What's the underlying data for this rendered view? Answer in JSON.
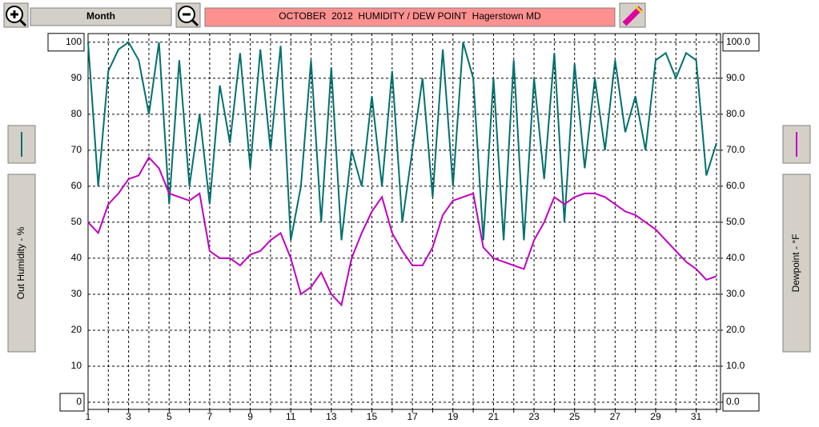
{
  "toolbar": {
    "period": "Month"
  },
  "chart_data": {
    "type": "line",
    "title": "OCTOBER  2012  HUMIDITY / DEW POINT  Hagerstown MD",
    "y_label": "Out Humidity - %",
    "y2_label": "Dewpoint - °F",
    "x": [
      1,
      1.5,
      2,
      2.5,
      3,
      3.5,
      4,
      4.5,
      5,
      5.5,
      6,
      6.5,
      7,
      7.5,
      8,
      8.5,
      9,
      9.5,
      10,
      10.5,
      11,
      11.5,
      12,
      12.5,
      13,
      13.5,
      14,
      14.5,
      15,
      15.5,
      16,
      16.5,
      17,
      17.5,
      18,
      18.5,
      19,
      19.5,
      20,
      20.5,
      21,
      21.5,
      22,
      22.5,
      23,
      23.5,
      24,
      24.5,
      25,
      25.5,
      26,
      26.5,
      27,
      27.5,
      28,
      28.5,
      29,
      29.5,
      30,
      30.5,
      31,
      31.5,
      32
    ],
    "series": [
      {
        "name": "Out Humidity",
        "color": "#007070",
        "values": [
          100,
          60,
          92,
          98,
          100,
          95,
          80,
          100,
          55,
          95,
          60,
          80,
          55,
          88,
          72,
          97,
          65,
          98,
          70,
          99,
          45,
          60,
          95,
          50,
          93,
          45,
          70,
          60,
          85,
          60,
          92,
          50,
          70,
          90,
          57,
          98,
          60,
          100,
          90,
          45,
          90,
          45,
          95,
          45,
          90,
          62,
          97,
          50,
          94,
          65,
          90,
          70,
          95,
          75,
          85,
          70,
          95,
          97,
          90,
          97,
          95,
          63,
          72
        ]
      },
      {
        "name": "Dewpoint",
        "color": "#c000c0",
        "axis": "y2",
        "values": [
          50,
          47,
          55,
          58,
          62,
          63,
          68,
          65,
          58,
          57,
          56,
          58,
          42,
          40,
          40,
          38,
          41,
          42,
          45,
          47,
          40,
          30,
          32,
          36,
          30,
          27,
          40,
          47,
          53,
          57,
          47,
          42,
          38,
          38,
          43,
          52,
          56,
          57,
          58,
          43,
          40,
          39,
          38,
          37,
          45,
          50,
          57,
          55,
          57,
          58,
          58,
          57,
          55,
          53,
          52,
          50,
          48,
          45,
          42,
          39,
          37,
          34,
          35
        ]
      }
    ],
    "xlim": [
      1,
      32.2
    ],
    "xticks": [
      1,
      3,
      5,
      7,
      9,
      11,
      13,
      15,
      17,
      19,
      21,
      23,
      25,
      27,
      29,
      31
    ],
    "xminorticks": [
      2,
      4,
      6,
      8,
      10,
      12,
      14,
      16,
      18,
      20,
      22,
      24,
      26,
      28,
      30,
      32
    ],
    "ylim": [
      -2,
      102.4
    ],
    "yticks": [
      0,
      10,
      20,
      30,
      40,
      50,
      60,
      70,
      80,
      90,
      100
    ],
    "y2lim": [
      -2,
      102.4
    ],
    "y2ticks": [
      {
        "value": 0,
        "label": "0.0"
      },
      {
        "value": 10,
        "label": "10.0"
      },
      {
        "value": 20,
        "label": "20.0"
      },
      {
        "value": 30,
        "label": "30.0"
      },
      {
        "value": 40,
        "label": "40.0"
      },
      {
        "value": 50,
        "label": "50.0"
      },
      {
        "value": 60,
        "label": "60.0"
      },
      {
        "value": 70,
        "label": "70.0"
      },
      {
        "value": 80,
        "label": "80.0"
      },
      {
        "value": 90,
        "label": "90.0"
      },
      {
        "value": 100,
        "label": "100.0"
      }
    ],
    "grid": true
  }
}
